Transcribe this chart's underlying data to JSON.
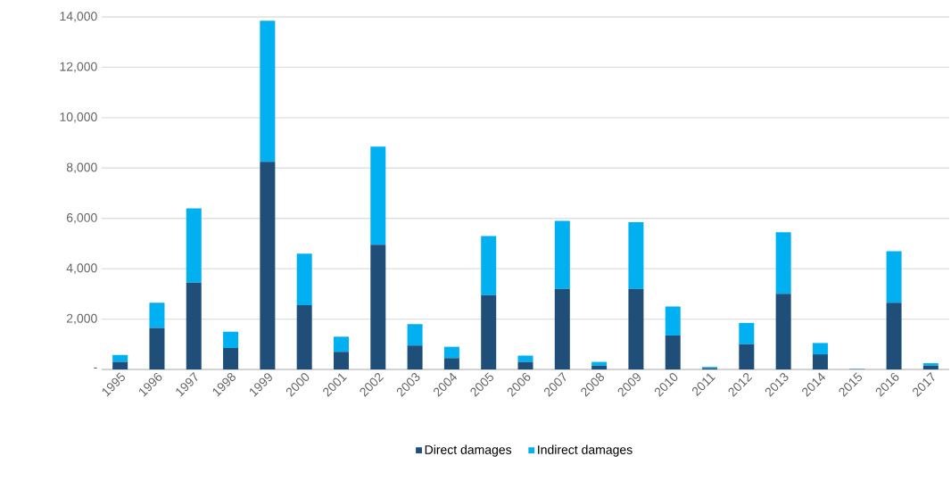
{
  "chart_data": {
    "type": "bar",
    "stacked": true,
    "categories": [
      "1995",
      "1996",
      "1997",
      "1998",
      "1999",
      "2000",
      "2001",
      "2002",
      "2003",
      "2004",
      "2005",
      "2006",
      "2007",
      "2008",
      "2009",
      "2010",
      "2011",
      "2012",
      "2013",
      "2014",
      "2015",
      "2016",
      "2017"
    ],
    "series": [
      {
        "name": "Direct damages",
        "color": "#1f4e79",
        "values": [
          300,
          1650,
          3450,
          850,
          8250,
          2550,
          700,
          4950,
          950,
          450,
          2950,
          300,
          3200,
          150,
          3200,
          1350,
          50,
          1000,
          3000,
          600,
          10,
          2650,
          150
        ]
      },
      {
        "name": "Indirect damages",
        "color": "#00b0f0",
        "values": [
          280,
          1000,
          2950,
          650,
          5600,
          2050,
          600,
          3900,
          850,
          450,
          2350,
          250,
          2700,
          150,
          2650,
          1150,
          50,
          850,
          2450,
          450,
          10,
          2050,
          100
        ]
      }
    ],
    "ylim": [
      0,
      14000
    ],
    "yticks": [
      {
        "value": 0,
        "label": "-"
      },
      {
        "value": 2000,
        "label": "2,000"
      },
      {
        "value": 4000,
        "label": "4,000"
      },
      {
        "value": 6000,
        "label": "6,000"
      },
      {
        "value": 8000,
        "label": "8,000"
      },
      {
        "value": 10000,
        "label": "10,000"
      },
      {
        "value": 12000,
        "label": "12,000"
      },
      {
        "value": 14000,
        "label": "14,000"
      }
    ],
    "grid": "y",
    "legend": "bottom"
  }
}
